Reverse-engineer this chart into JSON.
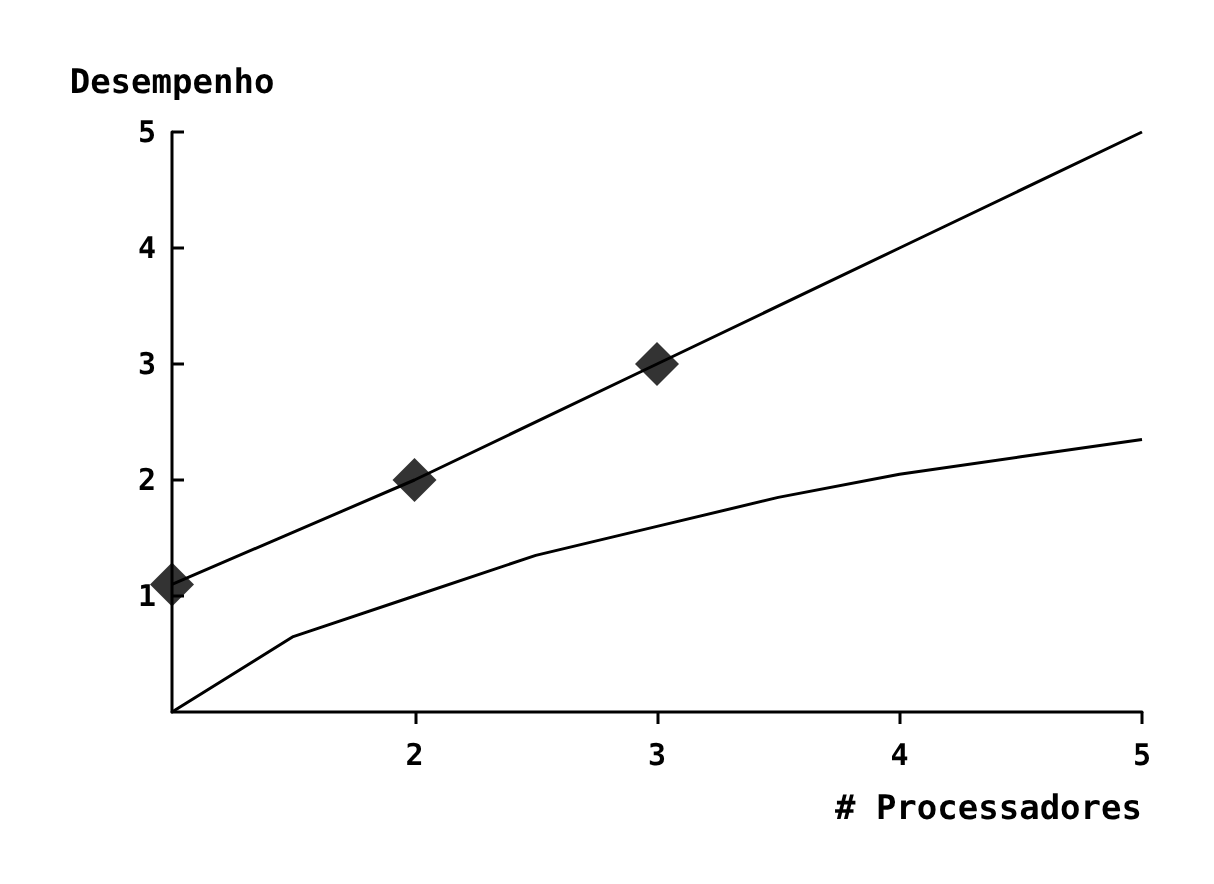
{
  "chart_data": {
    "type": "line",
    "xlabel": "# Processadores",
    "ylabel": "Desempenho",
    "xlim": [
      1,
      5
    ],
    "ylim": [
      0,
      5
    ],
    "xticks": [
      2,
      3,
      4,
      5
    ],
    "yticks": [
      1,
      2,
      3,
      4,
      5
    ],
    "grid": false,
    "series": [
      {
        "color": "#000000",
        "marker": "none",
        "x": [
          1,
          2,
          3,
          4,
          5
        ],
        "values": [
          1.1,
          2,
          3,
          4,
          5
        ]
      },
      {
        "color": "#000000",
        "marker": "none",
        "x": [
          1,
          1.5,
          2,
          2.5,
          3,
          3.5,
          4,
          4.5,
          5
        ],
        "values": [
          0,
          0.65,
          1.0,
          1.35,
          1.6,
          1.85,
          2.05,
          2.2,
          2.35
        ]
      },
      {
        "type": "scatter",
        "color": "#000000",
        "marker": "diamond",
        "x": [
          1,
          2,
          3
        ],
        "values": [
          1.1,
          2,
          3
        ]
      }
    ]
  }
}
